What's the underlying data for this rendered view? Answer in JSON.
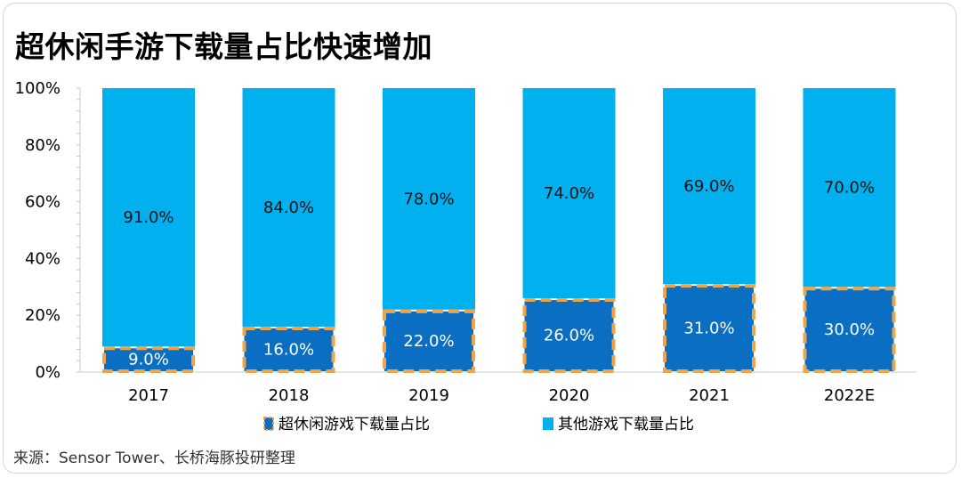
{
  "title": "超休闲手游下载量占比快速增加",
  "source": "来源：Sensor Tower、长桥海豚投研整理",
  "chart_data": {
    "type": "bar",
    "stacked": true,
    "categories": [
      "2017",
      "2018",
      "2019",
      "2020",
      "2021",
      "2022E"
    ],
    "series": [
      {
        "name": "超休闲游戏下载量占比",
        "values": [
          9.0,
          16.0,
          22.0,
          26.0,
          31.0,
          30.0
        ],
        "labels": [
          "9.0%",
          "16.0%",
          "22.0%",
          "26.0%",
          "31.0%",
          "30.0%"
        ],
        "color": "#0a6fc2",
        "outline": "#f0a34a"
      },
      {
        "name": "其他游戏下载量占比",
        "values": [
          91.0,
          84.0,
          78.0,
          74.0,
          69.0,
          70.0
        ],
        "labels": [
          "91.0%",
          "84.0%",
          "78.0%",
          "74.0%",
          "69.0%",
          "70.0%"
        ],
        "color": "#00b0ef"
      }
    ],
    "ylim": [
      0,
      100
    ],
    "yticks": [
      "0%",
      "20%",
      "40%",
      "60%",
      "80%",
      "100%"
    ],
    "legend_position": "bottom"
  }
}
